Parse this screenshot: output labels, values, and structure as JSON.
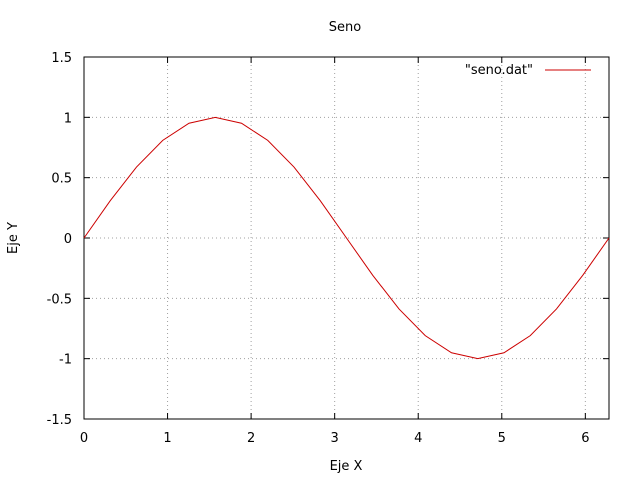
{
  "chart_data": {
    "type": "line",
    "title": "Seno",
    "xlabel": "Eje X",
    "ylabel": "Eje Y",
    "xlim": [
      0,
      6.2832
    ],
    "ylim": [
      -1.5,
      1.5
    ],
    "x_ticks": [
      0,
      1,
      2,
      3,
      4,
      5,
      6
    ],
    "y_ticks": [
      -1.5,
      -1,
      -0.5,
      0,
      0.5,
      1,
      1.5
    ],
    "grid": true,
    "legend_position": "top-right",
    "series": [
      {
        "name": "\"seno.dat\"",
        "color": "#cc0000",
        "x": [
          0,
          0.3142,
          0.6283,
          0.9425,
          1.2566,
          1.5708,
          1.885,
          2.1991,
          2.5133,
          2.8274,
          3.1416,
          3.4558,
          3.7699,
          4.0841,
          4.3982,
          4.7124,
          5.0265,
          5.3407,
          5.6549,
          5.969,
          6.2832
        ],
        "y": [
          0,
          0.309,
          0.5878,
          0.809,
          0.9511,
          1,
          0.9511,
          0.809,
          0.5878,
          0.309,
          0,
          -0.309,
          -0.5878,
          -0.809,
          -0.9511,
          -1,
          -0.9511,
          -0.809,
          -0.5878,
          -0.309,
          0
        ]
      }
    ]
  }
}
